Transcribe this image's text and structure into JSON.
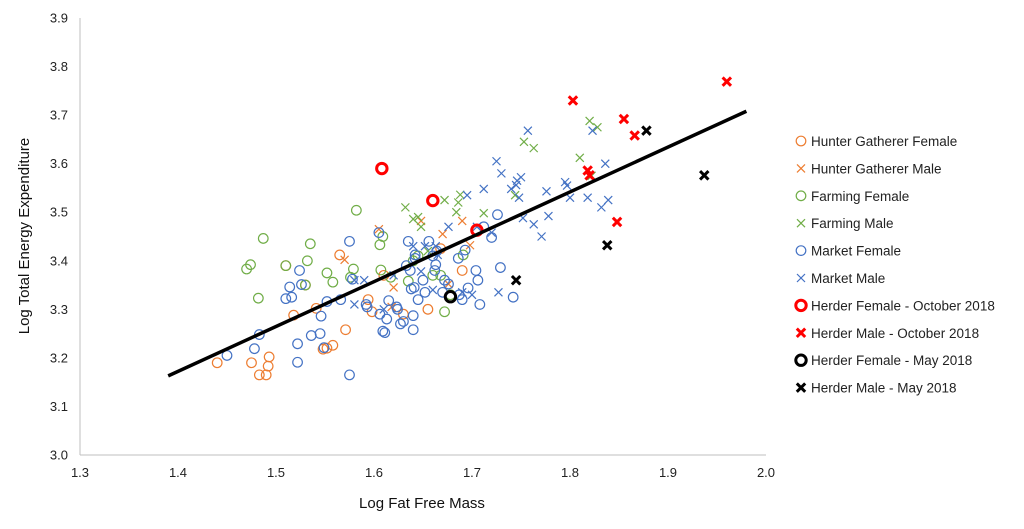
{
  "chart_data": {
    "type": "scatter",
    "title": "",
    "xlabel": "Log Fat Free Mass",
    "ylabel": "Log Total Energy Expenditure",
    "xlim": [
      1.3,
      2.0
    ],
    "ylim": [
      3.0,
      3.9
    ],
    "x_ticks": [
      "1.3",
      "1.4",
      "1.5",
      "1.6",
      "1.7",
      "1.8",
      "1.9",
      "2.0"
    ],
    "y_ticks": [
      "3.0",
      "3.1",
      "3.2",
      "3.3",
      "3.4",
      "3.5",
      "3.6",
      "3.7",
      "3.8",
      "3.9"
    ],
    "grid": false,
    "legend_position": "right",
    "trendline": {
      "x": [
        1.39,
        1.98
      ],
      "y": [
        3.163,
        3.708
      ],
      "color": "#000000"
    },
    "series": [
      {
        "name": "Hunter Gatherer Female",
        "marker": "circle",
        "color": "#ED7D31",
        "bold": false,
        "points": [
          [
            1.44,
            3.19
          ],
          [
            1.475,
            3.19
          ],
          [
            1.483,
            3.165
          ],
          [
            1.49,
            3.165
          ],
          [
            1.492,
            3.183
          ],
          [
            1.493,
            3.202
          ],
          [
            1.51,
            3.39
          ],
          [
            1.518,
            3.288
          ],
          [
            1.53,
            3.35
          ],
          [
            1.541,
            3.302
          ],
          [
            1.548,
            3.218
          ],
          [
            1.552,
            3.22
          ],
          [
            1.558,
            3.226
          ],
          [
            1.565,
            3.412
          ],
          [
            1.571,
            3.258
          ],
          [
            1.594,
            3.32
          ],
          [
            1.598,
            3.295
          ],
          [
            1.61,
            3.37
          ],
          [
            1.63,
            3.29
          ],
          [
            1.69,
            3.38
          ],
          [
            1.655,
            3.3
          ],
          [
            1.668,
            3.425
          ]
        ]
      },
      {
        "name": "Hunter Gatherer Male",
        "marker": "x",
        "color": "#ED7D31",
        "bold": false,
        "points": [
          [
            1.57,
            3.402
          ],
          [
            1.605,
            3.465
          ],
          [
            1.618,
            3.305
          ],
          [
            1.648,
            3.482
          ],
          [
            1.67,
            3.455
          ],
          [
            1.676,
            3.352
          ],
          [
            1.69,
            3.482
          ],
          [
            1.698,
            3.432
          ],
          [
            1.62,
            3.345
          ]
        ]
      },
      {
        "name": "Farming Female",
        "marker": "circle",
        "color": "#70AD47",
        "bold": false,
        "points": [
          [
            1.47,
            3.383
          ],
          [
            1.474,
            3.392
          ],
          [
            1.482,
            3.323
          ],
          [
            1.487,
            3.446
          ],
          [
            1.51,
            3.39
          ],
          [
            1.53,
            3.35
          ],
          [
            1.535,
            3.435
          ],
          [
            1.532,
            3.4
          ],
          [
            1.552,
            3.375
          ],
          [
            1.558,
            3.356
          ],
          [
            1.576,
            3.366
          ],
          [
            1.579,
            3.383
          ],
          [
            1.582,
            3.504
          ],
          [
            1.606,
            3.433
          ],
          [
            1.609,
            3.45
          ],
          [
            1.607,
            3.381
          ],
          [
            1.617,
            3.366
          ],
          [
            1.635,
            3.358
          ],
          [
            1.64,
            3.4
          ],
          [
            1.645,
            3.41
          ],
          [
            1.66,
            3.37
          ],
          [
            1.668,
            3.37
          ],
          [
            1.672,
            3.295
          ],
          [
            1.678,
            3.33
          ],
          [
            1.691,
            3.412
          ]
        ]
      },
      {
        "name": "Farming Male",
        "marker": "x",
        "color": "#70AD47",
        "bold": false,
        "points": [
          [
            1.632,
            3.51
          ],
          [
            1.64,
            3.486
          ],
          [
            1.645,
            3.49
          ],
          [
            1.655,
            3.42
          ],
          [
            1.672,
            3.525
          ],
          [
            1.684,
            3.5
          ],
          [
            1.686,
            3.52
          ],
          [
            1.688,
            3.536
          ],
          [
            1.712,
            3.498
          ],
          [
            1.744,
            3.535
          ],
          [
            1.753,
            3.645
          ],
          [
            1.763,
            3.632
          ],
          [
            1.81,
            3.612
          ],
          [
            1.82,
            3.688
          ],
          [
            1.822,
            3.575
          ],
          [
            1.828,
            3.675
          ],
          [
            1.648,
            3.47
          ]
        ]
      },
      {
        "name": "Market Female",
        "marker": "circle",
        "color": "#4472C4",
        "bold": false,
        "points": [
          [
            1.45,
            3.205
          ],
          [
            1.478,
            3.219
          ],
          [
            1.483,
            3.248
          ],
          [
            1.51,
            3.322
          ],
          [
            1.514,
            3.346
          ],
          [
            1.516,
            3.325
          ],
          [
            1.522,
            3.229
          ],
          [
            1.522,
            3.191
          ],
          [
            1.524,
            3.38
          ],
          [
            1.526,
            3.351
          ],
          [
            1.536,
            3.246
          ],
          [
            1.546,
            3.286
          ],
          [
            1.549,
            3.221
          ],
          [
            1.552,
            3.316
          ],
          [
            1.566,
            3.32
          ],
          [
            1.575,
            3.44
          ],
          [
            1.575,
            3.165
          ],
          [
            1.578,
            3.362
          ],
          [
            1.592,
            3.31
          ],
          [
            1.593,
            3.305
          ],
          [
            1.605,
            3.458
          ],
          [
            1.606,
            3.29
          ],
          [
            1.609,
            3.255
          ],
          [
            1.611,
            3.252
          ],
          [
            1.613,
            3.28
          ],
          [
            1.615,
            3.318
          ],
          [
            1.623,
            3.305
          ],
          [
            1.624,
            3.3
          ],
          [
            1.627,
            3.27
          ],
          [
            1.63,
            3.275
          ],
          [
            1.633,
            3.39
          ],
          [
            1.635,
            3.44
          ],
          [
            1.637,
            3.38
          ],
          [
            1.638,
            3.342
          ],
          [
            1.64,
            3.287
          ],
          [
            1.64,
            3.258
          ],
          [
            1.641,
            3.345
          ],
          [
            1.642,
            3.412
          ],
          [
            1.642,
            3.405
          ],
          [
            1.645,
            3.32
          ],
          [
            1.65,
            3.36
          ],
          [
            1.652,
            3.335
          ],
          [
            1.656,
            3.44
          ],
          [
            1.66,
            3.41
          ],
          [
            1.662,
            3.38
          ],
          [
            1.663,
            3.392
          ],
          [
            1.664,
            3.42
          ],
          [
            1.67,
            3.335
          ],
          [
            1.672,
            3.36
          ],
          [
            1.676,
            3.352
          ],
          [
            1.686,
            3.405
          ],
          [
            1.687,
            3.33
          ],
          [
            1.69,
            3.32
          ],
          [
            1.693,
            3.422
          ],
          [
            1.696,
            3.344
          ],
          [
            1.704,
            3.38
          ],
          [
            1.706,
            3.36
          ],
          [
            1.708,
            3.31
          ],
          [
            1.72,
            3.448
          ],
          [
            1.726,
            3.495
          ],
          [
            1.729,
            3.386
          ],
          [
            1.742,
            3.325
          ],
          [
            1.712,
            3.47
          ],
          [
            1.545,
            3.25
          ]
        ]
      },
      {
        "name": "Market Male",
        "marker": "x",
        "color": "#4472C4",
        "bold": false,
        "points": [
          [
            1.58,
            3.36
          ],
          [
            1.59,
            3.36
          ],
          [
            1.62,
            3.37
          ],
          [
            1.648,
            3.378
          ],
          [
            1.652,
            3.43
          ],
          [
            1.663,
            3.43
          ],
          [
            1.676,
            3.47
          ],
          [
            1.69,
            3.335
          ],
          [
            1.695,
            3.535
          ],
          [
            1.705,
            3.47
          ],
          [
            1.712,
            3.548
          ],
          [
            1.72,
            3.458
          ],
          [
            1.725,
            3.605
          ],
          [
            1.727,
            3.335
          ],
          [
            1.73,
            3.58
          ],
          [
            1.74,
            3.548
          ],
          [
            1.745,
            3.556
          ],
          [
            1.746,
            3.565
          ],
          [
            1.748,
            3.53
          ],
          [
            1.75,
            3.572
          ],
          [
            1.752,
            3.488
          ],
          [
            1.757,
            3.668
          ],
          [
            1.763,
            3.475
          ],
          [
            1.771,
            3.45
          ],
          [
            1.776,
            3.543
          ],
          [
            1.778,
            3.492
          ],
          [
            1.795,
            3.562
          ],
          [
            1.797,
            3.555
          ],
          [
            1.8,
            3.53
          ],
          [
            1.818,
            3.53
          ],
          [
            1.823,
            3.668
          ],
          [
            1.832,
            3.51
          ],
          [
            1.836,
            3.6
          ],
          [
            1.839,
            3.525
          ],
          [
            1.665,
            3.412
          ],
          [
            1.7,
            3.33
          ],
          [
            1.61,
            3.3
          ],
          [
            1.66,
            3.34
          ],
          [
            1.64,
            3.43
          ],
          [
            1.58,
            3.31
          ]
        ]
      },
      {
        "name": "Herder Female - October 2018",
        "marker": "circle",
        "color": "#FF0000",
        "bold": true,
        "points": [
          [
            1.608,
            3.59
          ],
          [
            1.66,
            3.524
          ],
          [
            1.705,
            3.463
          ]
        ]
      },
      {
        "name": "Herder Male - October 2018",
        "marker": "x",
        "color": "#FF0000",
        "bold": true,
        "points": [
          [
            1.803,
            3.73
          ],
          [
            1.818,
            3.586
          ],
          [
            1.82,
            3.576
          ],
          [
            1.848,
            3.48
          ],
          [
            1.855,
            3.692
          ],
          [
            1.866,
            3.658
          ],
          [
            1.96,
            3.769
          ]
        ]
      },
      {
        "name": "Herder Female - May 2018",
        "marker": "circle",
        "color": "#000000",
        "bold": true,
        "points": [
          [
            1.678,
            3.326
          ]
        ]
      },
      {
        "name": "Herder Male - May 2018",
        "marker": "x",
        "color": "#000000",
        "bold": true,
        "points": [
          [
            1.745,
            3.36
          ],
          [
            1.838,
            3.432
          ],
          [
            1.878,
            3.668
          ],
          [
            1.937,
            3.576
          ]
        ]
      }
    ]
  }
}
